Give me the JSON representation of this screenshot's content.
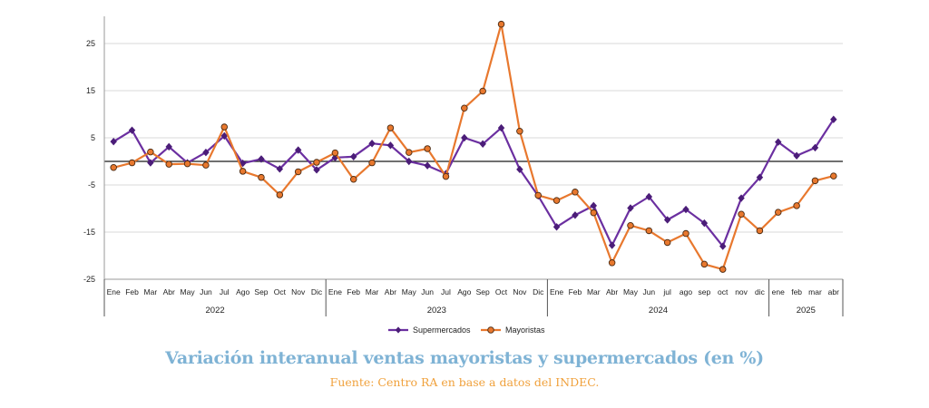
{
  "chart_data": {
    "type": "line",
    "title": "Variación interanual ventas mayoristas y supermercados (en %)",
    "source": "Fuente: Centro RA en base a datos del INDEC.",
    "ylim": [
      -25,
      30
    ],
    "yticks": [
      25,
      15,
      5,
      -5,
      -15,
      -25
    ],
    "grid": true,
    "legend_position": "bottom",
    "x": [
      "Ene",
      "Feb",
      "Mar",
      "Abr",
      "May",
      "Jun",
      "Jul",
      "Ago",
      "Sep",
      "Oct",
      "Nov",
      "Dic",
      "Ene",
      "Feb",
      "Mar",
      "Abr",
      "May",
      "Jun",
      "Jul",
      "Ago",
      "Sep",
      "Oct",
      "Nov",
      "Dic",
      "Ene",
      "Feb",
      "Mar",
      "Abr",
      "May",
      "Jun",
      "jul",
      "ago",
      "sep",
      "oct",
      "nov",
      "dic",
      "ene",
      "feb",
      "mar",
      "abr"
    ],
    "year_groups": [
      {
        "label": "2022",
        "start": 0,
        "count": 12
      },
      {
        "label": "2023",
        "start": 12,
        "count": 12
      },
      {
        "label": "2024",
        "start": 24,
        "count": 12
      },
      {
        "label": "2025",
        "start": 36,
        "count": 4
      }
    ],
    "series": [
      {
        "name": "Supermercados",
        "color": "#6b2fa0",
        "marker": "diamond",
        "values": [
          4.2,
          6.6,
          -0.3,
          3.1,
          -0.3,
          1.9,
          5.4,
          -0.4,
          0.5,
          -1.6,
          2.4,
          -1.8,
          0.8,
          1.0,
          3.8,
          3.4,
          0.0,
          -0.9,
          -2.6,
          5.0,
          3.7,
          7.1,
          -1.7,
          -7.3,
          -13.9,
          -11.4,
          -9.4,
          -17.8,
          -9.9,
          -7.5,
          -12.4,
          -10.2,
          -13.1,
          -18.0,
          -7.8,
          -3.4,
          4.1,
          1.2,
          2.9,
          8.9
        ]
      },
      {
        "name": "Mayoristas",
        "color": "#e8782e",
        "marker": "circle",
        "values": [
          -1.3,
          -0.3,
          2.0,
          -0.6,
          -0.5,
          -0.8,
          7.3,
          -2.1,
          -3.4,
          -7.1,
          -2.2,
          -0.2,
          1.8,
          -3.8,
          -0.3,
          7.1,
          1.9,
          2.7,
          -3.2,
          11.3,
          14.9,
          29.1,
          6.4,
          -7.2,
          -8.3,
          -6.5,
          -10.9,
          -21.5,
          -13.6,
          -14.7,
          -17.2,
          -15.3,
          -21.8,
          -22.9,
          -11.2,
          -14.7,
          -10.8,
          -9.4,
          -4.1,
          -3.1
        ]
      }
    ]
  }
}
